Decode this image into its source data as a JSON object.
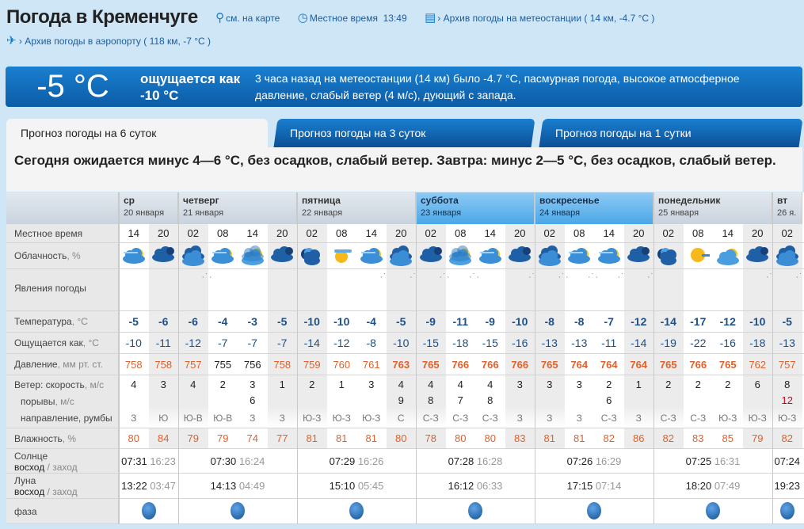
{
  "header": {
    "title": "Погода в Кременчуге",
    "map_link": "см. на карте",
    "local_time_label": "Местное время",
    "local_time": "13:49",
    "station_archive": "› Архив погоды на метеостанции ( 14 км, -4.7 °C )",
    "airport_archive": "› Архив погоды в аэропорту ( 118 км, -7 °C )"
  },
  "now": {
    "temp": "-5 °C",
    "feels": "ощущается как -10 °C",
    "desc": "3 часа назад на метеостанции (14 км) было -4.7 °C, пасмурная погода, высокое атмосферное давление, слабый ветер (4 м/с), дующий с запада."
  },
  "tabs": [
    "Прогноз погоды на 6 суток",
    "Прогноз погоды на 3 суток",
    "Прогноз погоды на 1 сутки"
  ],
  "summary": "Сегодня ожидается минус 4—6 °C, без осадков, слабый ветер. Завтра: минус 2—5 °C, без осадков, слабый ветер.",
  "labels": {
    "time": "Местное время",
    "cloud": "Облачность, %",
    "phen": "Явления погоды",
    "temp": "Температура, °C",
    "feel": "Ощущается как, °C",
    "pres": "Давление, мм рт. ст.",
    "wind": "Ветер: скорость, м/с",
    "gust": "порывы, м/с",
    "dir": "направление, румбы",
    "hum": "Влажность, %",
    "sun": "Солнце",
    "moon": "Луна",
    "rise_set_a": "восход",
    "rise_set_b": " / заход",
    "phase": "фаза"
  },
  "colors": {
    "accent": "#0c5ca6",
    "high": "#e2602a",
    "gust_strong": "#d0021b"
  },
  "days": [
    {
      "name": "ср",
      "date": "20 января",
      "weekend": false,
      "sunrise": "07:31",
      "sunset": "16:23",
      "moonrise": "13:22",
      "moonset": "03:47",
      "cols": 2
    },
    {
      "name": "четверг",
      "date": "21 января",
      "weekend": false,
      "sunrise": "07:30",
      "sunset": "16:24",
      "moonrise": "14:13",
      "moonset": "04:49",
      "cols": 4
    },
    {
      "name": "пятница",
      "date": "22 января",
      "weekend": false,
      "sunrise": "07:29",
      "sunset": "16:26",
      "moonrise": "15:10",
      "moonset": "05:45",
      "cols": 4
    },
    {
      "name": "суббота",
      "date": "23 января",
      "weekend": true,
      "sunrise": "07:28",
      "sunset": "16:28",
      "moonrise": "16:12",
      "moonset": "06:33",
      "cols": 4
    },
    {
      "name": "воскресенье",
      "date": "24 января",
      "weekend": true,
      "sunrise": "07:26",
      "sunset": "16:29",
      "moonrise": "17:15",
      "moonset": "07:14",
      "cols": 4
    },
    {
      "name": "понедельник",
      "date": "25 января",
      "weekend": false,
      "sunrise": "07:25",
      "sunset": "16:31",
      "moonrise": "18:20",
      "moonset": "07:49",
      "cols": 4
    },
    {
      "name": "вт",
      "date": "26 я.",
      "weekend": false,
      "sunrise": "07:24",
      "sunset": "",
      "moonrise": "19:23",
      "moonset": "",
      "cols": 1
    }
  ],
  "columns": [
    {
      "time": "14",
      "icon": "cloudy-sun",
      "snow": false,
      "temp": "-5",
      "feel": "-10",
      "pres": "758",
      "wind": "4",
      "gust": "",
      "dir": "З",
      "hum": "80"
    },
    {
      "time": "20",
      "icon": "cloudy-night",
      "snow": false,
      "temp": "-6",
      "feel": "-11",
      "pres": "758",
      "wind": "3",
      "gust": "",
      "dir": "Ю",
      "hum": "84"
    },
    {
      "time": "02",
      "icon": "overcast",
      "snow": true,
      "temp": "-6",
      "feel": "-12",
      "pres": "757",
      "wind": "4",
      "gust": "",
      "dir": "Ю-В",
      "hum": "79"
    },
    {
      "time": "08",
      "icon": "cloudy-sun",
      "snow": false,
      "temp": "-4",
      "feel": "-7",
      "pres": "755",
      "wind": "2",
      "gust": "",
      "dir": "Ю-В",
      "hum": "79"
    },
    {
      "time": "14",
      "icon": "overcast-sun",
      "snow": false,
      "temp": "-3",
      "feel": "-7",
      "pres": "756",
      "wind": "3",
      "gust": "6",
      "dir": "З",
      "hum": "74"
    },
    {
      "time": "20",
      "icon": "cloudy-night",
      "snow": false,
      "temp": "-5",
      "feel": "-7",
      "pres": "758",
      "wind": "1",
      "gust": "",
      "dir": "З",
      "hum": "77"
    },
    {
      "time": "02",
      "icon": "night-partly",
      "snow": false,
      "temp": "-10",
      "feel": "-14",
      "pres": "759",
      "wind": "2",
      "gust": "",
      "dir": "Ю-З",
      "hum": "81"
    },
    {
      "time": "08",
      "icon": "sun-cloud",
      "snow": false,
      "temp": "-10",
      "feel": "-12",
      "pres": "760",
      "wind": "1",
      "gust": "",
      "dir": "Ю-З",
      "hum": "81"
    },
    {
      "time": "14",
      "icon": "cloudy-sun",
      "snow": true,
      "temp": "-4",
      "feel": "-8",
      "pres": "761",
      "wind": "3",
      "gust": "",
      "dir": "Ю-З",
      "hum": "81"
    },
    {
      "time": "20",
      "icon": "overcast",
      "snow": true,
      "temp": "-5",
      "feel": "-10",
      "pres": "763",
      "wind": "4",
      "gust": "9",
      "dir": "С",
      "hum": "80"
    },
    {
      "time": "02",
      "icon": "cloudy-night",
      "snow": true,
      "temp": "-9",
      "feel": "-15",
      "pres": "765",
      "wind": "4",
      "gust": "8",
      "dir": "С-З",
      "hum": "78"
    },
    {
      "time": "08",
      "icon": "overcast-sun",
      "snow": true,
      "temp": "-11",
      "feel": "-18",
      "pres": "766",
      "wind": "4",
      "gust": "7",
      "dir": "С-З",
      "hum": "80"
    },
    {
      "time": "14",
      "icon": "cloudy-sun",
      "snow": false,
      "temp": "-9",
      "feel": "-15",
      "pres": "766",
      "wind": "4",
      "gust": "8",
      "dir": "С-З",
      "hum": "80"
    },
    {
      "time": "20",
      "icon": "cloudy-night",
      "snow": true,
      "temp": "-10",
      "feel": "-16",
      "pres": "766",
      "wind": "3",
      "gust": "",
      "dir": "З",
      "hum": "83"
    },
    {
      "time": "02",
      "icon": "overcast",
      "snow": true,
      "temp": "-8",
      "feel": "-13",
      "pres": "765",
      "wind": "3",
      "gust": "",
      "dir": "З",
      "hum": "81"
    },
    {
      "time": "08",
      "icon": "cloudy-sun",
      "snow": true,
      "temp": "-8",
      "feel": "-13",
      "pres": "764",
      "wind": "3",
      "gust": "",
      "dir": "З",
      "hum": "81"
    },
    {
      "time": "14",
      "icon": "cloudy-sun",
      "snow": true,
      "temp": "-7",
      "feel": "-11",
      "pres": "764",
      "wind": "2",
      "gust": "6",
      "dir": "С-З",
      "hum": "82"
    },
    {
      "time": "20",
      "icon": "cloudy-night",
      "snow": true,
      "temp": "-12",
      "feel": "-14",
      "pres": "764",
      "wind": "1",
      "gust": "",
      "dir": "З",
      "hum": "86"
    },
    {
      "time": "02",
      "icon": "night-partly",
      "snow": false,
      "temp": "-14",
      "feel": "-19",
      "pres": "765",
      "wind": "2",
      "gust": "",
      "dir": "С-З",
      "hum": "82"
    },
    {
      "time": "08",
      "icon": "sun",
      "snow": false,
      "temp": "-17",
      "feel": "-22",
      "pres": "766",
      "wind": "2",
      "gust": "",
      "dir": "С-З",
      "hum": "83"
    },
    {
      "time": "14",
      "icon": "partly-sun",
      "snow": false,
      "temp": "-12",
      "feel": "-16",
      "pres": "765",
      "wind": "2",
      "gust": "",
      "dir": "Ю-З",
      "hum": "85"
    },
    {
      "time": "20",
      "icon": "cloudy-night",
      "snow": true,
      "temp": "-10",
      "feel": "-18",
      "pres": "762",
      "wind": "6",
      "gust": "",
      "dir": "Ю-З",
      "hum": "79"
    },
    {
      "time": "02",
      "icon": "overcast",
      "snow": true,
      "temp": "-5",
      "feel": "-13",
      "pres": "757",
      "wind": "8",
      "gust": "12",
      "dir": "Ю-З",
      "hum": "82"
    }
  ]
}
